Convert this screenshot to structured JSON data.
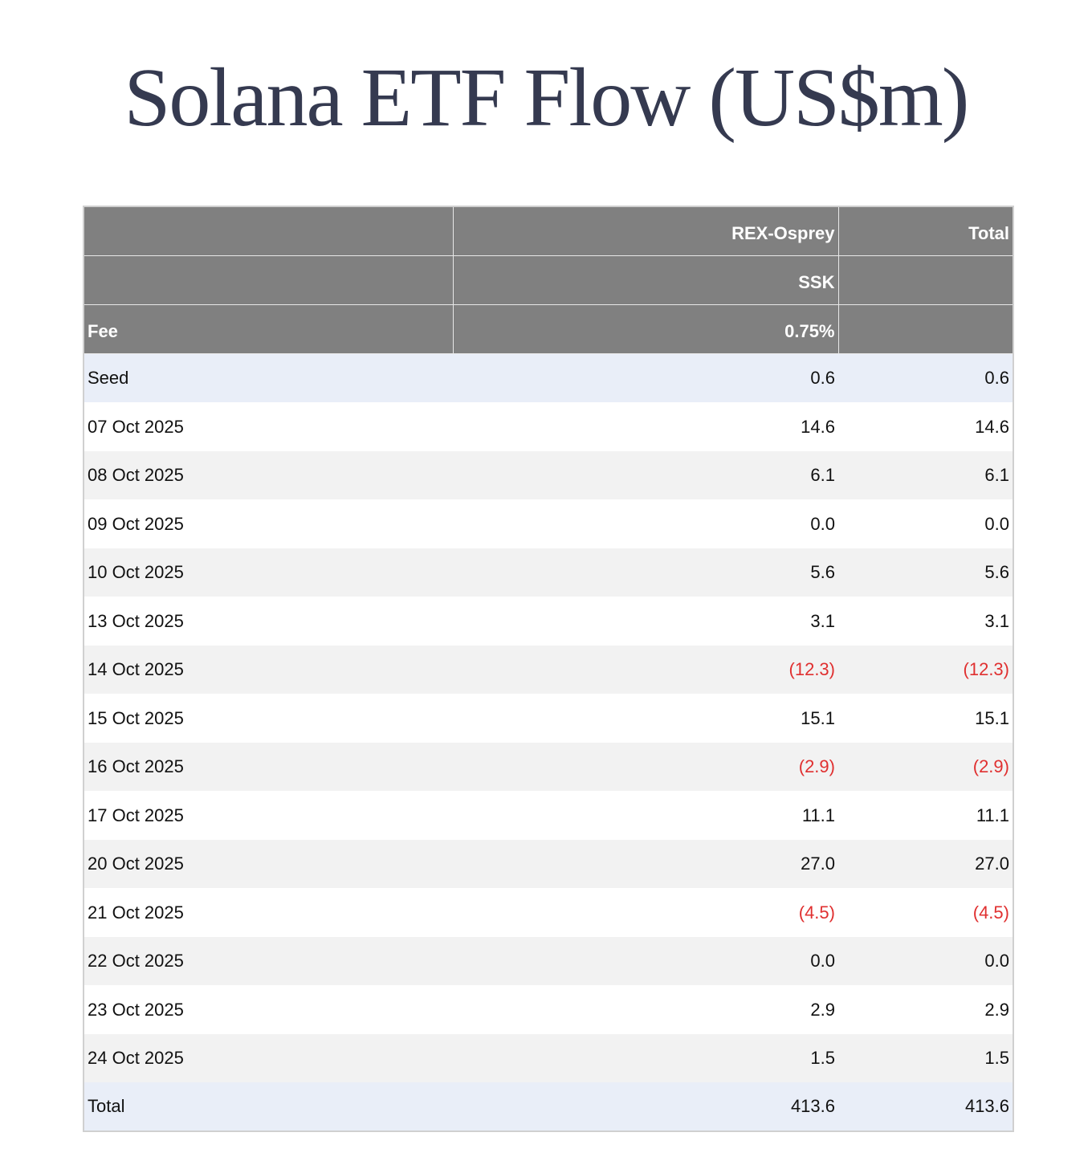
{
  "title": "Solana ETF Flow (US$m)",
  "table": {
    "header": {
      "columns": [
        "REX-Osprey",
        "Total"
      ],
      "tickers": [
        "SSK"
      ],
      "fee_label": "Fee",
      "fees": [
        "0.75%"
      ]
    },
    "rows": [
      [
        "Seed",
        "0.6",
        "0.6"
      ],
      [
        "07 Oct 2025",
        "14.6",
        "14.6"
      ],
      [
        "08 Oct 2025",
        "6.1",
        "6.1"
      ],
      [
        "09 Oct 2025",
        "0.0",
        "0.0"
      ],
      [
        "10 Oct 2025",
        "5.6",
        "5.6"
      ],
      [
        "13 Oct 2025",
        "3.1",
        "3.1"
      ],
      [
        "14 Oct 2025",
        "(12.3)",
        "(12.3)"
      ],
      [
        "15 Oct 2025",
        "15.1",
        "15.1"
      ],
      [
        "16 Oct 2025",
        "(2.9)",
        "(2.9)"
      ],
      [
        "17 Oct 2025",
        "11.1",
        "11.1"
      ],
      [
        "20 Oct 2025",
        "27.0",
        "27.0"
      ],
      [
        "21 Oct 2025",
        "(4.5)",
        "(4.5)"
      ],
      [
        "22 Oct 2025",
        "0.0",
        "0.0"
      ],
      [
        "23 Oct 2025",
        "2.9",
        "2.9"
      ],
      [
        "24 Oct 2025",
        "1.5",
        "1.5"
      ]
    ],
    "total": [
      "Total",
      "413.6",
      "413.6"
    ]
  }
}
